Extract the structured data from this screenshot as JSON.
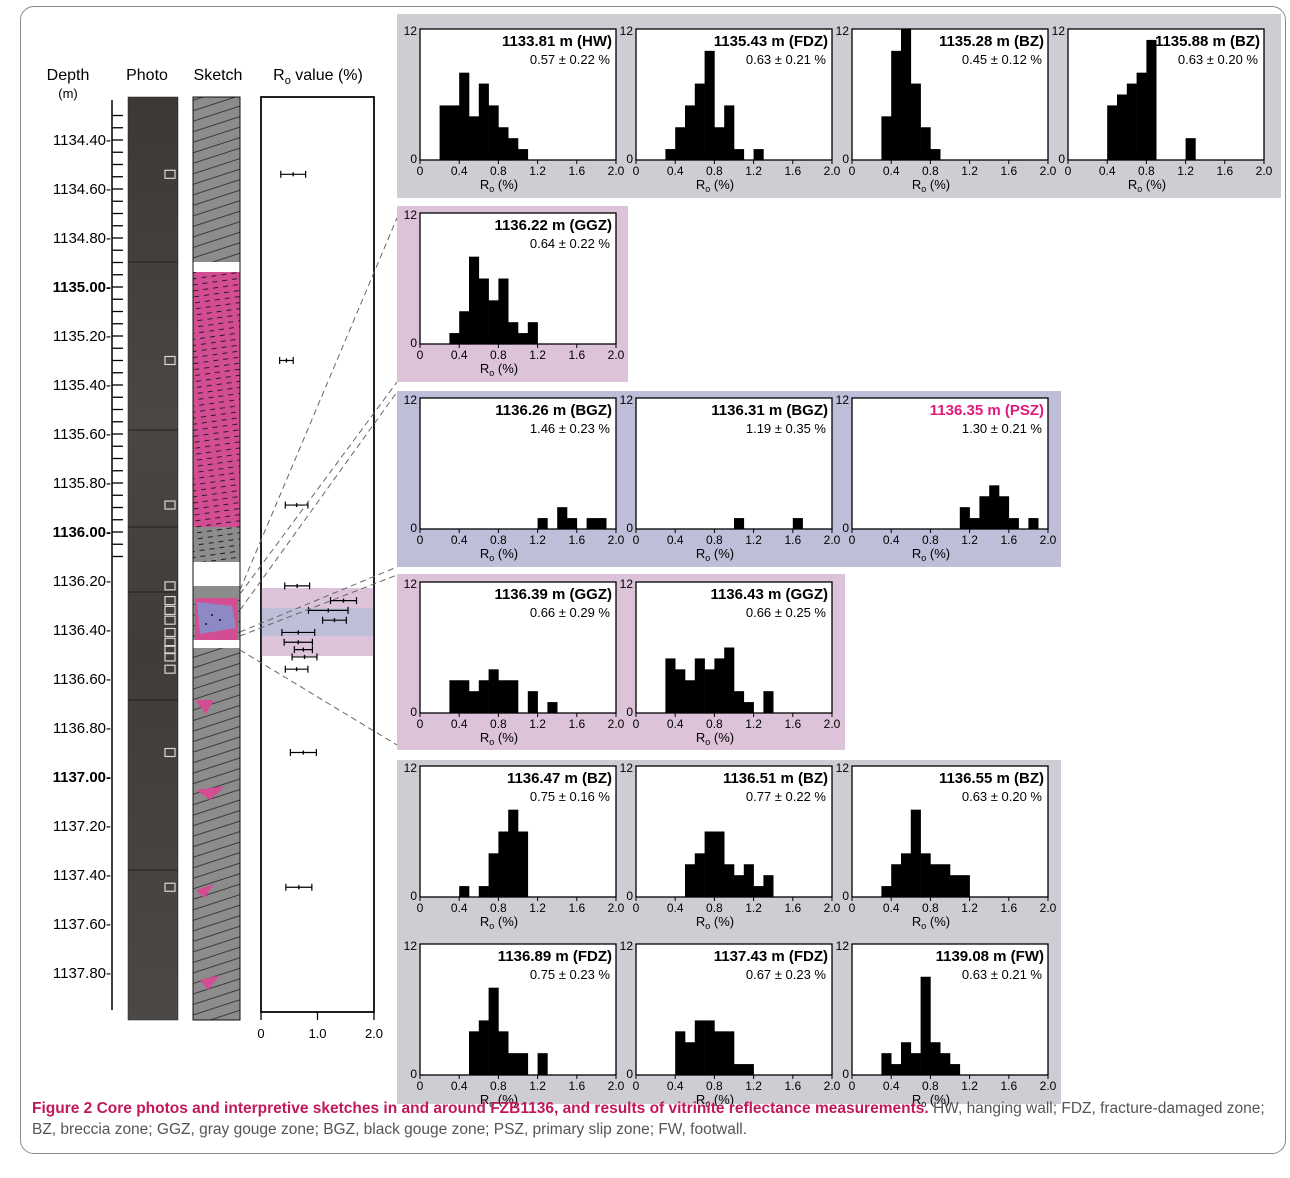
{
  "colors": {
    "gray_panel": "#cfcdd4",
    "pink_panel": "#dcc3da",
    "blue_panel": "#bfbed8",
    "psz_accent": "#e0197d",
    "sketch_gray": "#8c8c8c",
    "sketch_pink": "#d34d92",
    "sketch_blue": "#8c89c4",
    "caption_title": "#c2185b",
    "bar_fill": "#000000"
  },
  "column_headers": {
    "depth": "Depth",
    "depth_unit": "(m)",
    "photo": "Photo",
    "sketch": "Sketch",
    "ro_label_prefix": "R",
    "ro_label_sub": "o",
    "ro_label_suffix": " value (%)"
  },
  "depth_axis": {
    "labels": [
      {
        "text": "1134.40-",
        "depth": 1134.4,
        "bold": false
      },
      {
        "text": "1134.60-",
        "depth": 1134.6,
        "bold": false
      },
      {
        "text": "1134.80-",
        "depth": 1134.8,
        "bold": false
      },
      {
        "text": "1135.00-",
        "depth": 1135.0,
        "bold": true
      },
      {
        "text": "1135.20-",
        "depth": 1135.2,
        "bold": false
      },
      {
        "text": "1135.40-",
        "depth": 1135.4,
        "bold": false
      },
      {
        "text": "1135.60-",
        "depth": 1135.6,
        "bold": false
      },
      {
        "text": "1135.80-",
        "depth": 1135.8,
        "bold": false
      },
      {
        "text": "1136.00-",
        "depth": 1136.0,
        "bold": true
      },
      {
        "text": "1136.20-",
        "depth": 1136.2,
        "bold": false
      },
      {
        "text": "1136.40-",
        "depth": 1136.4,
        "bold": false
      },
      {
        "text": "1136.60-",
        "depth": 1136.6,
        "bold": false
      },
      {
        "text": "1136.80-",
        "depth": 1136.8,
        "bold": false
      },
      {
        "text": "1137.00-",
        "depth": 1137.0,
        "bold": true
      },
      {
        "text": "1137.20-",
        "depth": 1137.2,
        "bold": false
      },
      {
        "text": "1137.40-",
        "depth": 1137.4,
        "bold": false
      },
      {
        "text": "1137.60-",
        "depth": 1137.6,
        "bold": false
      },
      {
        "text": "1137.80-",
        "depth": 1137.8,
        "bold": false
      }
    ]
  },
  "ro_axis": {
    "ticks": [
      "0",
      "1.0",
      "2.0"
    ],
    "range": [
      0,
      2.0
    ]
  },
  "ro_profile": [
    {
      "depth": 1134.54,
      "mean": 0.57,
      "sd": 0.22
    },
    {
      "depth": 1135.3,
      "mean": 0.45,
      "sd": 0.12
    },
    {
      "depth": 1135.89,
      "mean": 0.63,
      "sd": 0.2
    },
    {
      "depth": 1136.22,
      "mean": 0.64,
      "sd": 0.22
    },
    {
      "depth": 1136.28,
      "mean": 1.46,
      "sd": 0.23
    },
    {
      "depth": 1136.32,
      "mean": 1.19,
      "sd": 0.35
    },
    {
      "depth": 1136.36,
      "mean": 1.3,
      "sd": 0.21
    },
    {
      "depth": 1136.41,
      "mean": 0.66,
      "sd": 0.29
    },
    {
      "depth": 1136.45,
      "mean": 0.66,
      "sd": 0.25
    },
    {
      "depth": 1136.48,
      "mean": 0.75,
      "sd": 0.16
    },
    {
      "depth": 1136.51,
      "mean": 0.77,
      "sd": 0.22
    },
    {
      "depth": 1136.56,
      "mean": 0.63,
      "sd": 0.2
    },
    {
      "depth": 1136.9,
      "mean": 0.75,
      "sd": 0.23
    },
    {
      "depth": 1137.45,
      "mean": 0.67,
      "sd": 0.23
    }
  ],
  "histogram_axes": {
    "x_ticks": [
      "0",
      "0.4",
      "0.8",
      "1.2",
      "1.6",
      "2.0"
    ],
    "y_ticks": [
      "0",
      "12"
    ],
    "xlabel_prefix": "R",
    "xlabel_sub": "o",
    "xlabel_suffix": " (%)",
    "xlim": [
      0,
      2.0
    ],
    "ylim": [
      0,
      12
    ]
  },
  "chart_data": [
    {
      "type": "bar",
      "title": "1133.81 m (HW)",
      "stat": "0.57 ± 0.22 %",
      "bin_width": 0.1,
      "bin_start": 0.0,
      "values": [
        0,
        0,
        5,
        5,
        8,
        4,
        7,
        5,
        3,
        2,
        1,
        0,
        0,
        0,
        0,
        0,
        0,
        0,
        0,
        0
      ],
      "xlim": [
        0,
        2.0
      ],
      "ylim": [
        0,
        12
      ]
    },
    {
      "type": "bar",
      "title": "1135.43 m (FDZ)",
      "stat": "0.63 ± 0.21 %",
      "bin_width": 0.1,
      "bin_start": 0.0,
      "values": [
        0,
        0,
        0,
        1,
        3,
        5,
        7,
        10,
        3,
        5,
        1,
        0,
        1,
        0,
        0,
        0,
        0,
        0,
        0,
        0
      ],
      "xlim": [
        0,
        2.0
      ],
      "ylim": [
        0,
        12
      ]
    },
    {
      "type": "bar",
      "title": "1135.28 m (BZ)",
      "stat": "0.45 ± 0.12 %",
      "bin_width": 0.1,
      "bin_start": 0.0,
      "values": [
        0,
        0,
        0,
        4,
        10,
        12,
        7,
        3,
        1,
        0,
        0,
        0,
        0,
        0,
        0,
        0,
        0,
        0,
        0,
        0
      ],
      "xlim": [
        0,
        2.0
      ],
      "ylim": [
        0,
        12
      ]
    },
    {
      "type": "bar",
      "title": "1135.88 m (BZ)",
      "stat": "0.63 ± 0.20 %",
      "bin_width": 0.1,
      "bin_start": 0.0,
      "values": [
        0,
        0,
        0,
        0,
        5,
        6,
        7,
        8,
        11,
        0,
        0,
        0,
        2,
        0,
        0,
        0,
        0,
        0,
        0,
        0
      ],
      "xlim": [
        0,
        2.0
      ],
      "ylim": [
        0,
        12
      ]
    },
    {
      "type": "bar",
      "title": "1136.22 m (GGZ)",
      "stat": "0.64 ± 0.22 %",
      "bin_width": 0.1,
      "bin_start": 0.0,
      "values": [
        0,
        0,
        0,
        1,
        3,
        8,
        6,
        4,
        6,
        2,
        1,
        2,
        0,
        0,
        0,
        0,
        0,
        0,
        0,
        0
      ],
      "xlim": [
        0,
        2.0
      ],
      "ylim": [
        0,
        12
      ]
    },
    {
      "type": "bar",
      "title": "1136.26 m (BGZ)",
      "stat": "1.46 ± 0.23 %",
      "bin_width": 0.1,
      "bin_start": 0.0,
      "values": [
        0,
        0,
        0,
        0,
        0,
        0,
        0,
        0,
        0,
        0,
        0,
        0,
        1,
        0,
        2,
        1,
        0,
        1,
        1,
        0
      ],
      "xlim": [
        0,
        2.0
      ],
      "ylim": [
        0,
        12
      ]
    },
    {
      "type": "bar",
      "title": "1136.31 m (BGZ)",
      "stat": "1.19 ± 0.35 %",
      "bin_width": 0.1,
      "bin_start": 0.0,
      "values": [
        0,
        0,
        0,
        0,
        0,
        0,
        0,
        0,
        0,
        0,
        1,
        0,
        0,
        0,
        0,
        0,
        1,
        0,
        0,
        0
      ],
      "xlim": [
        0,
        2.0
      ],
      "ylim": [
        0,
        12
      ]
    },
    {
      "type": "bar",
      "title": "1136.35 m (PSZ)",
      "stat": "1.30 ± 0.21 %",
      "bin_width": 0.1,
      "bin_start": 0.0,
      "values": [
        0,
        0,
        0,
        0,
        0,
        0,
        0,
        0,
        0,
        0,
        0,
        2,
        1,
        3,
        4,
        3,
        1,
        0,
        1,
        0
      ],
      "xlim": [
        0,
        2.0
      ],
      "ylim": [
        0,
        12
      ],
      "highlight": true
    },
    {
      "type": "bar",
      "title": "1136.39 m (GGZ)",
      "stat": "0.66 ± 0.29 %",
      "bin_width": 0.1,
      "bin_start": 0.0,
      "values": [
        0,
        0,
        0,
        3,
        3,
        2,
        3,
        4,
        3,
        3,
        0,
        2,
        0,
        1,
        0,
        0,
        0,
        0,
        0,
        0
      ],
      "xlim": [
        0,
        2.0
      ],
      "ylim": [
        0,
        12
      ]
    },
    {
      "type": "bar",
      "title": "1136.43 m (GGZ)",
      "stat": "0.66 ± 0.25 %",
      "bin_width": 0.1,
      "bin_start": 0.0,
      "values": [
        0,
        0,
        0,
        5,
        4,
        3,
        5,
        4,
        5,
        6,
        2,
        1,
        0,
        2,
        0,
        0,
        0,
        0,
        0,
        0
      ],
      "xlim": [
        0,
        2.0
      ],
      "ylim": [
        0,
        12
      ]
    },
    {
      "type": "bar",
      "title": "1136.47 m (BZ)",
      "stat": "0.75 ± 0.16 %",
      "bin_width": 0.1,
      "bin_start": 0.0,
      "values": [
        0,
        0,
        0,
        0,
        1,
        0,
        1,
        4,
        6,
        8,
        6,
        0,
        0,
        0,
        0,
        0,
        0,
        0,
        0,
        0
      ],
      "xlim": [
        0,
        2.0
      ],
      "ylim": [
        0,
        12
      ]
    },
    {
      "type": "bar",
      "title": "1136.51 m (BZ)",
      "stat": "0.77 ± 0.22 %",
      "bin_width": 0.1,
      "bin_start": 0.0,
      "values": [
        0,
        0,
        0,
        0,
        0,
        3,
        4,
        6,
        6,
        3,
        2,
        3,
        1,
        2,
        0,
        0,
        0,
        0,
        0,
        0
      ],
      "xlim": [
        0,
        2.0
      ],
      "ylim": [
        0,
        12
      ]
    },
    {
      "type": "bar",
      "title": "1136.55 m (BZ)",
      "stat": "0.63 ± 0.20 %",
      "bin_width": 0.1,
      "bin_start": 0.0,
      "values": [
        0,
        0,
        0,
        1,
        3,
        4,
        8,
        4,
        3,
        3,
        2,
        2,
        0,
        0,
        0,
        0,
        0,
        0,
        0,
        0
      ],
      "xlim": [
        0,
        2.0
      ],
      "ylim": [
        0,
        12
      ]
    },
    {
      "type": "bar",
      "title": "1136.89 m (FDZ)",
      "stat": "0.75 ± 0.23 %",
      "bin_width": 0.1,
      "bin_start": 0.0,
      "values": [
        0,
        0,
        0,
        0,
        0,
        4,
        5,
        8,
        4,
        2,
        2,
        0,
        2,
        0,
        0,
        0,
        0,
        0,
        0,
        0
      ],
      "xlim": [
        0,
        2.0
      ],
      "ylim": [
        0,
        12
      ]
    },
    {
      "type": "bar",
      "title": "1137.43 m (FDZ)",
      "stat": "0.67 ± 0.23 %",
      "bin_width": 0.1,
      "bin_start": 0.0,
      "values": [
        0,
        0,
        0,
        0,
        4,
        3,
        5,
        5,
        4,
        4,
        1,
        1,
        0,
        0,
        0,
        0,
        0,
        0,
        0,
        0
      ],
      "xlim": [
        0,
        2.0
      ],
      "ylim": [
        0,
        12
      ]
    },
    {
      "type": "bar",
      "title": "1139.08 m (FW)",
      "stat": "0.63 ± 0.21 %",
      "bin_width": 0.1,
      "bin_start": 0.0,
      "values": [
        0,
        0,
        0,
        2,
        1,
        3,
        2,
        9,
        3,
        2,
        1,
        0,
        0,
        0,
        0,
        0,
        0,
        0,
        0,
        0
      ],
      "xlim": [
        0,
        2.0
      ],
      "ylim": [
        0,
        12
      ]
    }
  ],
  "caption": {
    "title": "Figure 2 Core photos and interpretive sketches in and around FZB1136, and results of vitrinite reflectance measurements.",
    "body": "HW, hanging wall; FDZ, fracture-damaged zone; BZ, breccia zone; GGZ, gray gouge zone; BGZ, black gouge zone; PSZ, primary slip zone; FW, footwall."
  }
}
